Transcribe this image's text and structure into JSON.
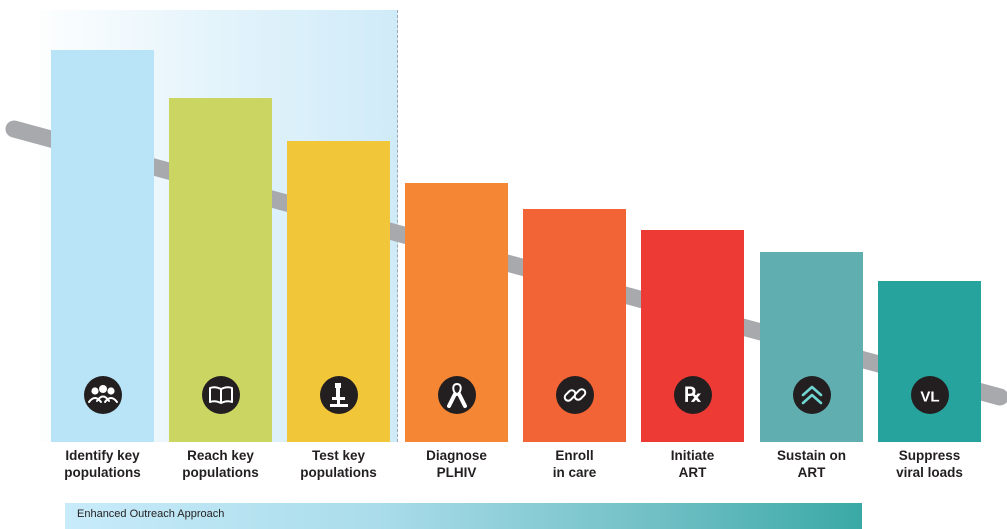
{
  "steps": [
    {
      "line1": "Identify key",
      "line2": "populations",
      "color": "#b9e4f7",
      "icon": "people-group-icon",
      "glyph": ""
    },
    {
      "line1": "Reach key",
      "line2": "populations",
      "color": "#cbd562",
      "icon": "book-icon",
      "glyph": ""
    },
    {
      "line1": "Test key",
      "line2": "populations",
      "color": "#f1c638",
      "icon": "microscope-icon",
      "glyph": ""
    },
    {
      "line1": "Diagnose",
      "line2": "PLHIV",
      "color": "#f58634",
      "icon": "awareness-ribbon-icon",
      "glyph": ""
    },
    {
      "line1": "Enroll",
      "line2": "in care",
      "color": "#f26335",
      "icon": "chain-link-icon",
      "glyph": ""
    },
    {
      "line1": "Initiate",
      "line2": "ART",
      "color": "#ee3a35",
      "icon": "rx-icon",
      "glyph": "℞"
    },
    {
      "line1": "Sustain on",
      "line2": "ART",
      "color": "#60aeb0",
      "icon": "double-chevron-up-icon",
      "glyph": ""
    },
    {
      "line1": "Suppress",
      "line2": "viral loads",
      "color": "#26a39c",
      "icon": "vl-icon",
      "glyph": "VL"
    }
  ],
  "trend_color": "#a7a9ac",
  "band": {
    "label": "Enhanced Outreach Approach"
  }
}
